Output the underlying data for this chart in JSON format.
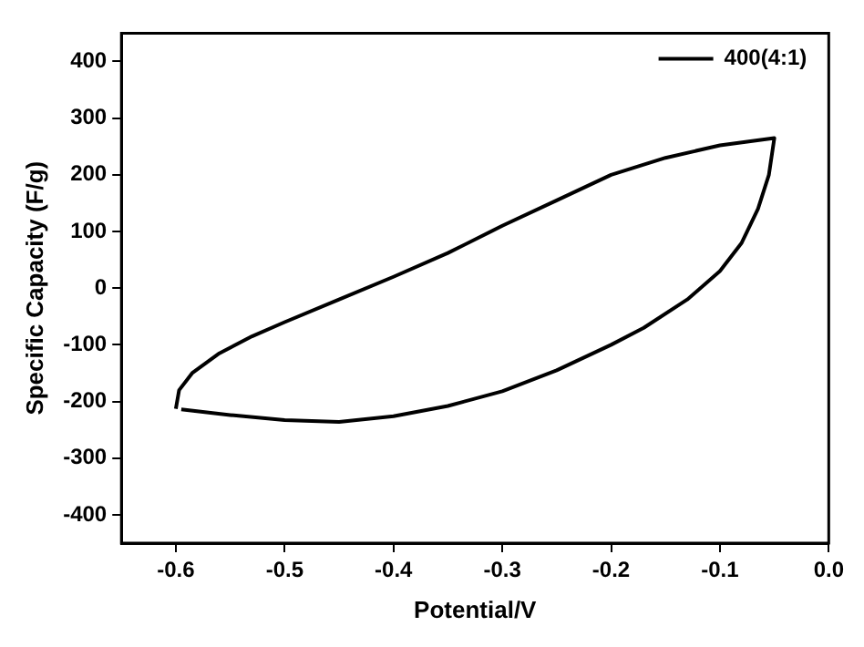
{
  "chart_data": {
    "type": "line",
    "xlabel": "Potential/V",
    "ylabel": "Specific Capacity (F/g)",
    "xlim": [
      -0.65,
      0.0
    ],
    "xticks": [
      {
        "value": -0.6,
        "label": "-0.6"
      },
      {
        "value": -0.5,
        "label": "-0.5"
      },
      {
        "value": -0.4,
        "label": "-0.4"
      },
      {
        "value": -0.3,
        "label": "-0.3"
      },
      {
        "value": -0.2,
        "label": "-0.2"
      },
      {
        "value": -0.1,
        "label": "-0.1"
      },
      {
        "value": 0,
        "label": "0.0"
      }
    ],
    "ylim": [
      -450,
      450
    ],
    "yticks": [
      -400,
      -300,
      -200,
      -100,
      0,
      100,
      200,
      300,
      400
    ],
    "grid": false,
    "legend": "top right",
    "marker": "none",
    "line_style": "solid",
    "series": [
      {
        "name": "400(4:1)",
        "color": "#000000",
        "x": [
          -0.6,
          -0.597,
          -0.585,
          -0.56,
          -0.53,
          -0.5,
          -0.45,
          -0.4,
          -0.35,
          -0.3,
          -0.25,
          -0.2,
          -0.15,
          -0.1,
          -0.05,
          -0.055,
          -0.065,
          -0.08,
          -0.1,
          -0.13,
          -0.17,
          -0.2,
          -0.25,
          -0.3,
          -0.35,
          -0.4,
          -0.45,
          -0.5,
          -0.55,
          -0.595
        ],
        "values": [
          -213,
          -180,
          -150,
          -115,
          -85,
          -60,
          -20,
          20,
          62,
          110,
          155,
          200,
          230,
          252,
          265,
          200,
          140,
          80,
          30,
          -20,
          -70,
          -100,
          -145,
          -182,
          -208,
          -226,
          -236,
          -233,
          -224,
          -214
        ]
      }
    ]
  }
}
